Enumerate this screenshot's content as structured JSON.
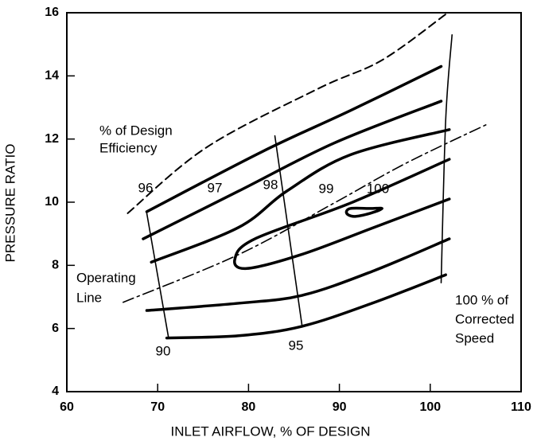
{
  "chart_data": {
    "type": "line",
    "x_label": "INLET AIRFLOW, % OF DESIGN",
    "y_label": "PRESSURE RATIO",
    "xlim": [
      60,
      110
    ],
    "xticks": [
      60,
      70,
      80,
      90,
      100,
      110
    ],
    "ylim": [
      4,
      16
    ],
    "yticks": [
      4,
      6,
      8,
      10,
      12,
      14,
      16
    ],
    "color": "#000000",
    "series": [
      {
        "style": "dashed",
        "x": [
          66.7,
          75.4,
          87.7,
          94.7,
          101.7
        ],
        "values": [
          9.65,
          11.74,
          13.6,
          14.5,
          15.95
        ]
      },
      {
        "style": "thick",
        "x": [
          68.8,
          81.5,
          91.2,
          101.2
        ],
        "values": [
          9.7,
          11.6,
          12.9,
          14.3
        ]
      },
      {
        "style": "thick",
        "x": [
          68.4,
          78.9,
          89.4,
          101.2
        ],
        "values": [
          8.84,
          10.35,
          11.87,
          13.2
        ]
      },
      {
        "style": "thick",
        "x": [
          69.3,
          78.9,
          84.2,
          91.2,
          102.1
        ],
        "values": [
          8.1,
          9.2,
          10.35,
          11.5,
          12.3
        ]
      },
      {
        "style": "thick",
        "x": [
          102.1,
          91.2,
          80.7,
          78.5,
          79.8,
          85.9,
          93.8,
          102.1
        ],
        "values": [
          11.36,
          9.97,
          8.84,
          8.2,
          7.9,
          8.35,
          9.2,
          10.1
        ]
      },
      {
        "style": "thick-closed",
        "x": [
          93.4,
          91.2,
          90.8,
          91.6,
          93.4,
          94.7
        ],
        "values": [
          9.8,
          9.8,
          9.65,
          9.55,
          9.65,
          9.8
        ]
      },
      {
        "style": "thick",
        "x": [
          68.8,
          78.9,
          85.9,
          93.8,
          102.1
        ],
        "values": [
          6.57,
          6.8,
          7.05,
          7.83,
          8.84
        ]
      },
      {
        "style": "thick",
        "x": [
          71.0,
          78.9,
          85.9,
          93.8,
          101.7
        ],
        "values": [
          5.7,
          5.77,
          6.07,
          6.82,
          7.7
        ]
      },
      {
        "style": "thin",
        "x": [
          68.8,
          71.2
        ],
        "values": [
          9.65,
          5.7
        ]
      },
      {
        "style": "thin",
        "x": [
          82.9,
          85.9
        ],
        "values": [
          12.1,
          6.07
        ]
      },
      {
        "style": "thin",
        "x": [
          102.4,
          101.7,
          101.2
        ],
        "values": [
          15.3,
          12.6,
          7.45
        ]
      },
      {
        "style": "dashdot",
        "x": [
          66.2,
          78.9,
          89.4,
          97.3,
          106.5
        ],
        "values": [
          6.83,
          8.34,
          9.97,
          11.23,
          12.5
        ]
      }
    ],
    "annotations": [
      "% of Design",
      "Efficiency",
      "96",
      "97",
      "98",
      "99",
      "100",
      "Operating",
      "Line",
      "100 % of",
      "Corrected",
      "Speed",
      "90",
      "95"
    ]
  }
}
